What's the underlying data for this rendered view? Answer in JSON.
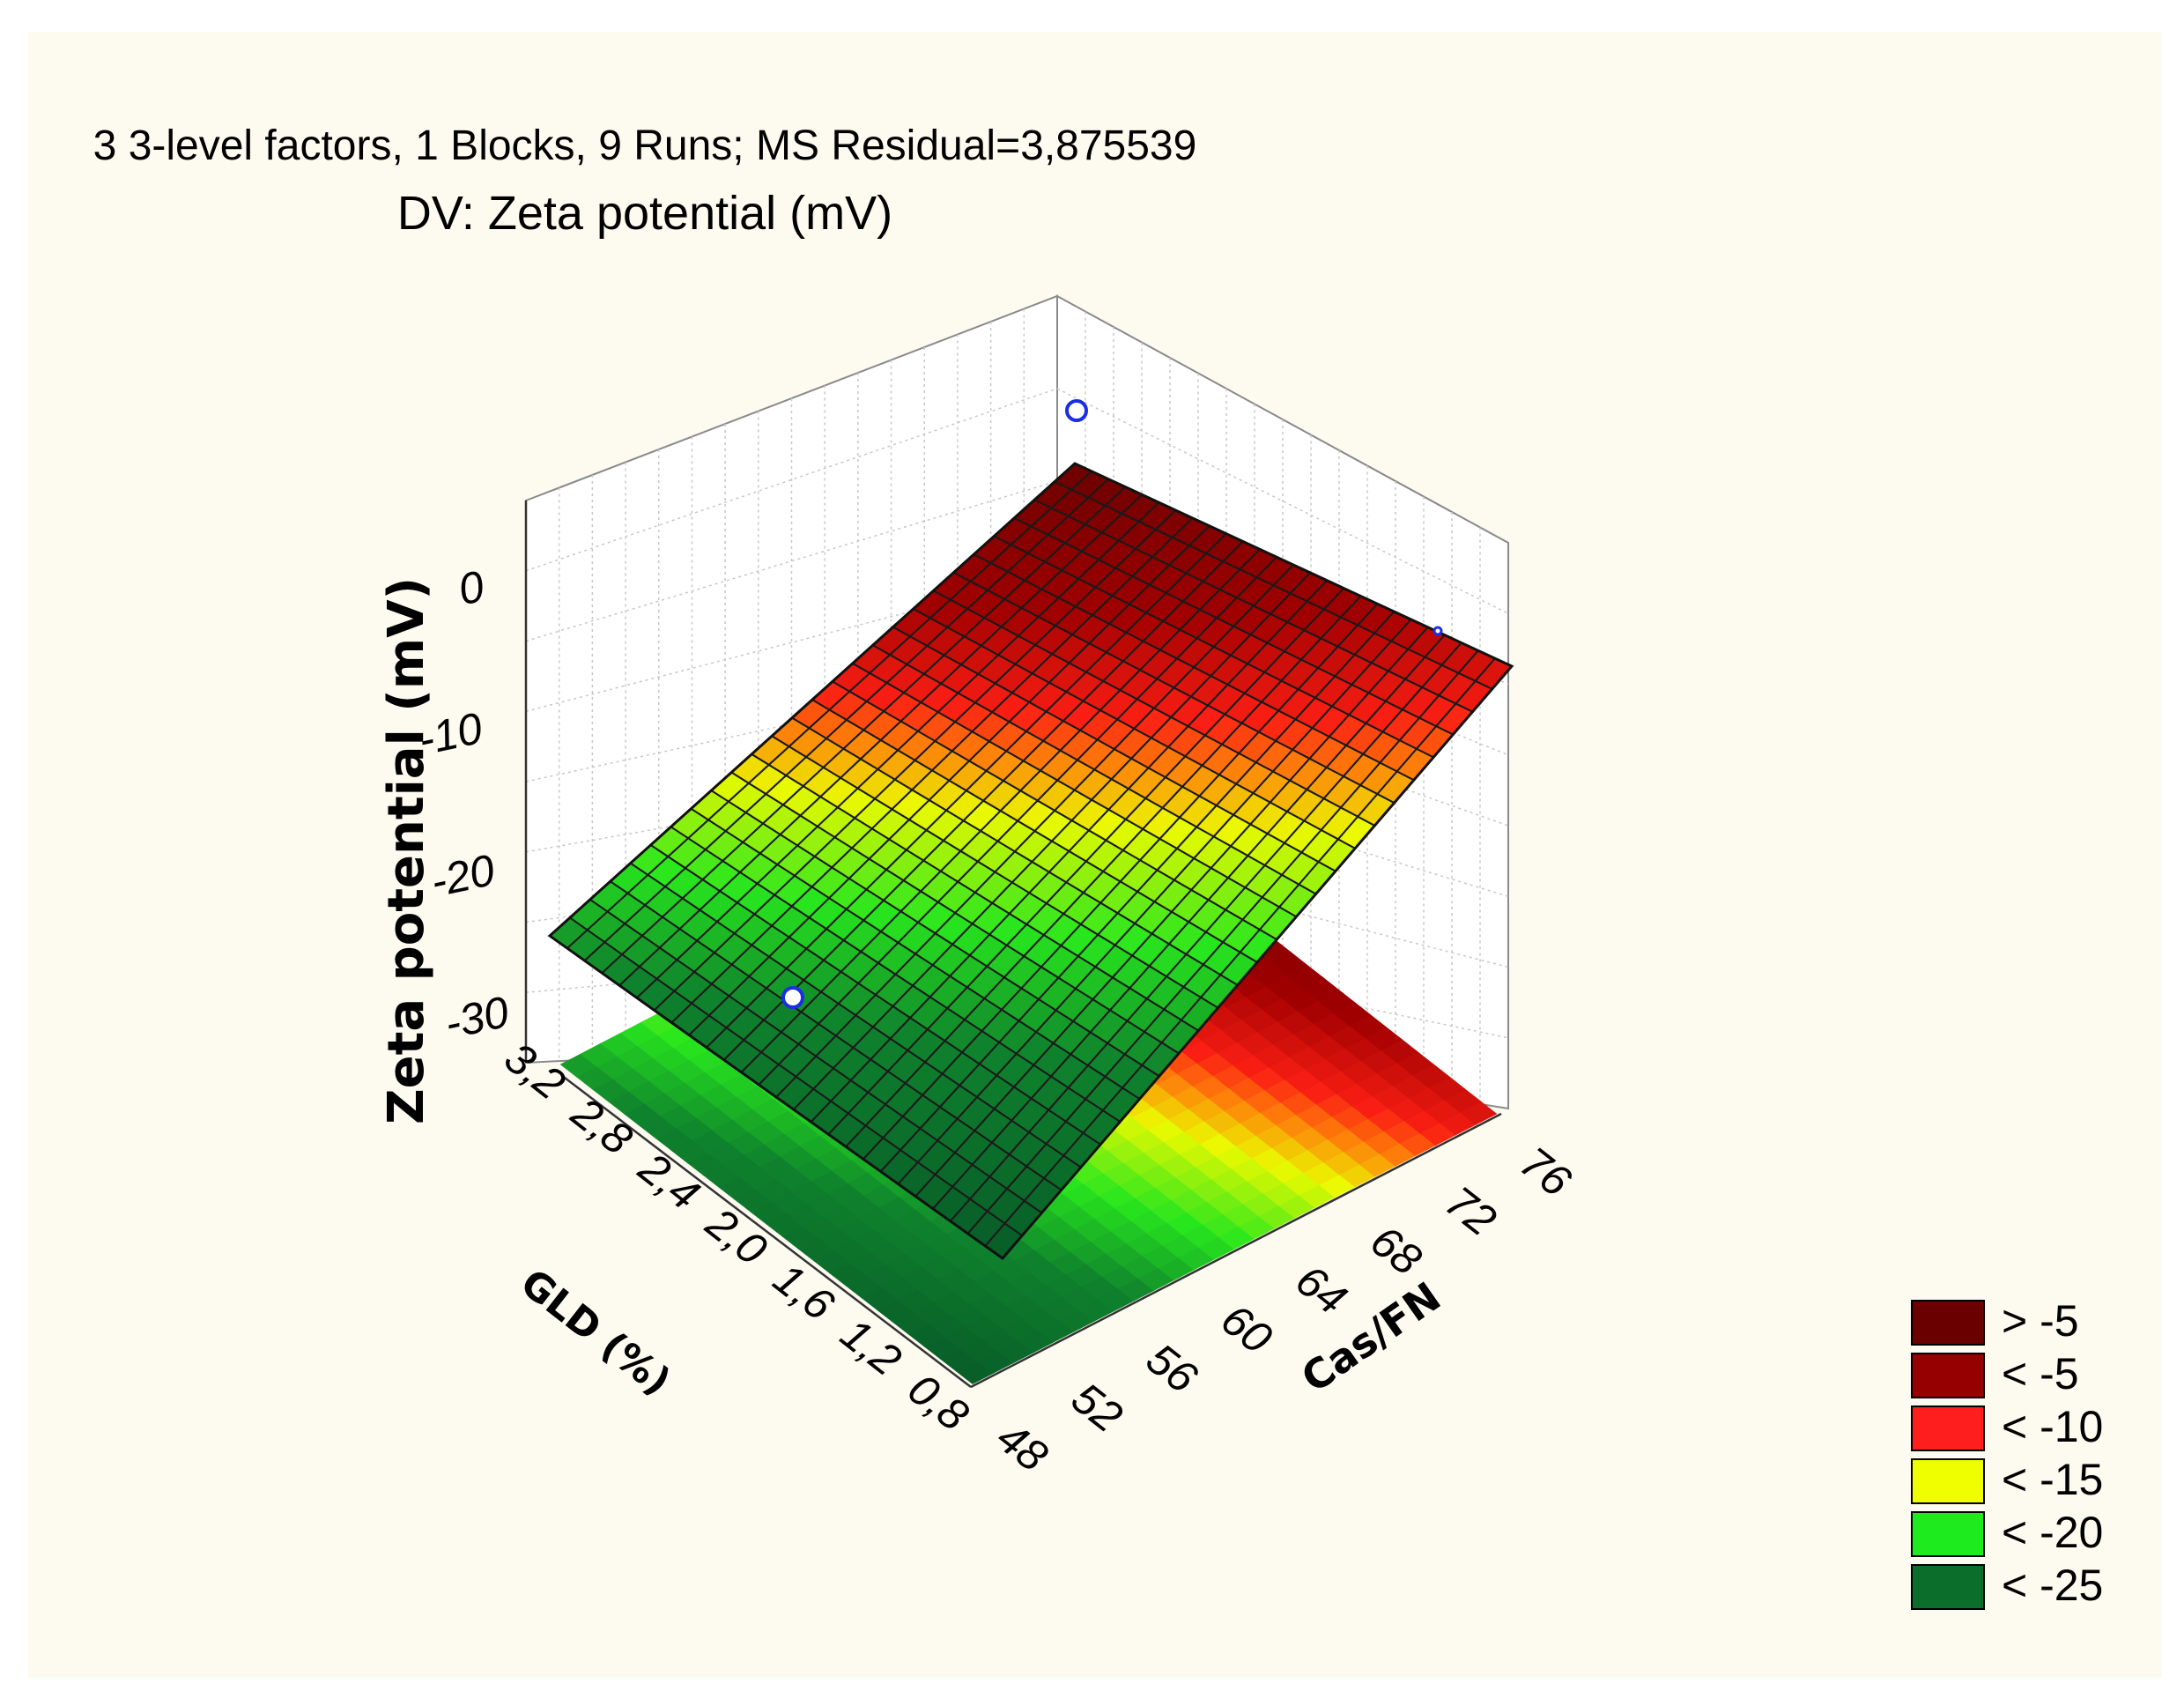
{
  "chart_data": {
    "type": "surface3d",
    "title": "3 3-level factors, 1 Blocks, 9 Runs; MS Residual=3,875539",
    "subtitle": "DV: Zeta potential (mV)",
    "zlabel": "Zeta potential (mV)",
    "xlabel": "GLD (%)",
    "ylabel": "Cas/FN",
    "x_ticks": [
      "0,8",
      "1,2",
      "1,6",
      "2,0",
      "2,4",
      "2,8",
      "3,2"
    ],
    "y_ticks": [
      "48",
      "52",
      "56",
      "60",
      "64",
      "68",
      "72",
      "76"
    ],
    "z_ticks": [
      "-30",
      "-20",
      "-10",
      "0"
    ],
    "xlim": [
      0.8,
      3.2
    ],
    "ylim": [
      48,
      76
    ],
    "zlim": [
      -33,
      5
    ],
    "surface_corners": [
      {
        "gld": 0.8,
        "cas_fn": 48,
        "zeta": -33
      },
      {
        "gld": 3.2,
        "cas_fn": 48,
        "zeta": -24
      },
      {
        "gld": 0.8,
        "cas_fn": 76,
        "zeta": -8
      },
      {
        "gld": 3.2,
        "cas_fn": 76,
        "zeta": 3
      }
    ],
    "observed_points": [
      {
        "gld": 3.2,
        "cas_fn": 76,
        "zeta": 6.5
      },
      {
        "gld": 2.0,
        "cas_fn": 48,
        "zeta": -30
      },
      {
        "gld": 0.8,
        "cas_fn": 76,
        "zeta": -4.5
      }
    ],
    "legend": [
      {
        "label": "> -5",
        "color": "#6b0000"
      },
      {
        "label": "< -5",
        "color": "#960000"
      },
      {
        "label": "< -10",
        "color": "#ff1e1e"
      },
      {
        "label": "< -15",
        "color": "#f0ff00"
      },
      {
        "label": "< -20",
        "color": "#1eeb1e"
      },
      {
        "label": "< -25",
        "color": "#0b6e2a"
      }
    ],
    "legend_position": "bottom-right",
    "grid": true
  }
}
